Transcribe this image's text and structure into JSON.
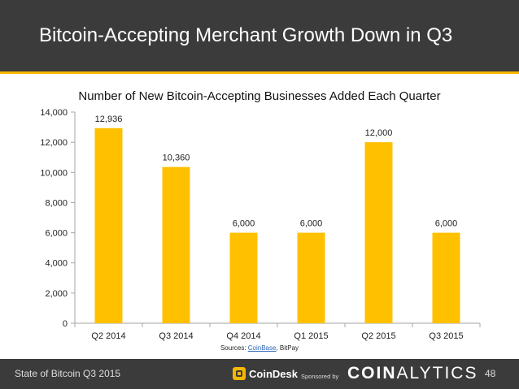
{
  "slide": {
    "title": "Bitcoin-Accepting Merchant Growth Down in Q3",
    "sources_prefix": "Sources: ",
    "sources_link": "CoinBase",
    "sources_suffix": ", BitPay",
    "footer_left": "State of Bitcoin Q3 2015",
    "coindesk_label": "CoinDesk",
    "sponsored_label": "Sponsored by",
    "coinalytics_bold": "COIN",
    "coinalytics_light": "ALYTICS",
    "page_number": "48"
  },
  "colors": {
    "header_bg": "#3b3b3b",
    "accent": "#f5b800",
    "bar": "#ffc000"
  },
  "chart_data": {
    "type": "bar",
    "title": "Number of New Bitcoin-Accepting Businesses Added Each Quarter",
    "categories": [
      "Q2 2014",
      "Q3 2014",
      "Q4 2014",
      "Q1 2015",
      "Q2 2015",
      "Q3 2015"
    ],
    "values": [
      12936,
      10360,
      6000,
      6000,
      12000,
      6000
    ],
    "data_labels": [
      "12,936",
      "10,360",
      "6,000",
      "6,000",
      "12,000",
      "6,000"
    ],
    "ylim": [
      0,
      14000
    ],
    "yticks": [
      0,
      2000,
      4000,
      6000,
      8000,
      10000,
      12000,
      14000
    ],
    "ytick_labels": [
      "0",
      "2,000",
      "4,000",
      "6,000",
      "8,000",
      "10,000",
      "12,000",
      "14,000"
    ],
    "xlabel": "",
    "ylabel": "",
    "grid": false,
    "legend": "none"
  }
}
